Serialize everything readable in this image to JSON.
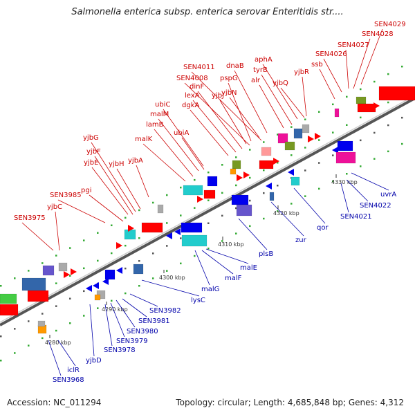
{
  "title": "Salmonella enterica subsp. enterica serovar Enteritidis str....",
  "footer": {
    "accession": "Accession: NC_011294",
    "topology": "Topology: circular; Length: 4,685,848 bp; Genes: 4,312"
  },
  "colors": {
    "plus_strand": "#ff0000",
    "minus_strand": "#0000ee",
    "plus_label": "#cc0000",
    "minus_label": "#0000aa",
    "cyan": "#22cccc",
    "slate": "#3366aa",
    "purple": "#6655cc",
    "magenta": "#ee1199",
    "green": "#44cc44",
    "olive": "#779922",
    "orange": "#ff9900",
    "gray": "#aaaaaa",
    "pink": "#ff9999",
    "tick_green": "#33aa33"
  },
  "scale_ticks": [
    "4280 kbp",
    "4290 kbp",
    "4300 kbp",
    "4310 kbp",
    "4320 kbp",
    "4330 kbp"
  ],
  "genes_plus": [
    {
      "label": "SEN3975"
    },
    {
      "label": "yjbC"
    },
    {
      "label": "SEN3985"
    },
    {
      "label": "pgi"
    },
    {
      "label": "yjbE"
    },
    {
      "label": "yjbF"
    },
    {
      "label": "yjbG"
    },
    {
      "label": "yjbH"
    },
    {
      "label": "yjbA"
    },
    {
      "label": "malK"
    },
    {
      "label": "lamB"
    },
    {
      "label": "malM"
    },
    {
      "label": "ubiC"
    },
    {
      "label": "ubiA"
    },
    {
      "label": "dgkA"
    },
    {
      "label": "lexA"
    },
    {
      "label": "dinF"
    },
    {
      "label": "SEN4008"
    },
    {
      "label": "SEN4011"
    },
    {
      "label": "yjbJ"
    },
    {
      "label": "pspG"
    },
    {
      "label": "yjbN"
    },
    {
      "label": "dnaB"
    },
    {
      "label": "alr"
    },
    {
      "label": "tyrB"
    },
    {
      "label": "aphA"
    },
    {
      "label": "yjbQ"
    },
    {
      "label": "yjbR"
    },
    {
      "label": "ssb"
    },
    {
      "label": "SEN4026"
    },
    {
      "label": "SEN4027"
    },
    {
      "label": "SEN4028"
    },
    {
      "label": "SEN4029"
    }
  ],
  "genes_minus": [
    {
      "label": "SEN3968"
    },
    {
      "label": "iclR"
    },
    {
      "label": "yjbD"
    },
    {
      "label": "SEN3978"
    },
    {
      "label": "SEN3979"
    },
    {
      "label": "SEN3980"
    },
    {
      "label": "SEN3981"
    },
    {
      "label": "SEN3982"
    },
    {
      "label": "lysC"
    },
    {
      "label": "malG"
    },
    {
      "label": "malF"
    },
    {
      "label": "malE"
    },
    {
      "label": "plsB"
    },
    {
      "label": "zur"
    },
    {
      "label": "qor"
    },
    {
      "label": "SEN4021"
    },
    {
      "label": "SEN4022"
    },
    {
      "label": "uvrA"
    }
  ]
}
